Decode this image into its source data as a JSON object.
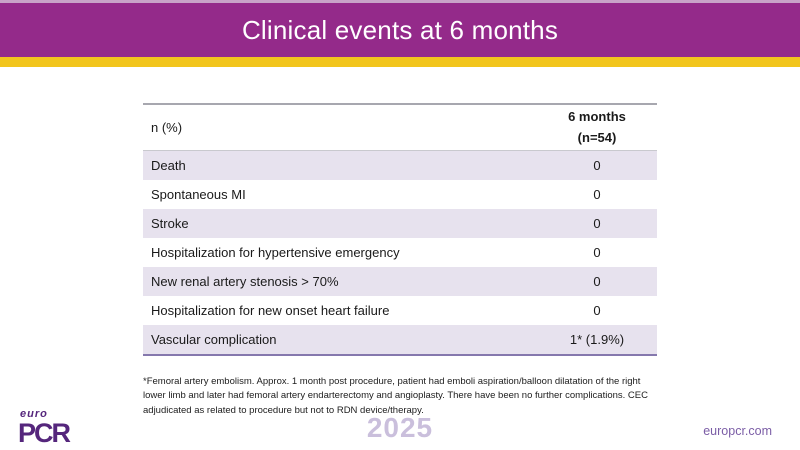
{
  "slide": {
    "title": "Clinical events at 6 months",
    "footnote": "*Femoral artery embolism. Approx. 1 month post procedure, patient had emboli aspiration/balloon dilatation of the right lower limb and later had femoral artery endarterectomy and angioplasty. There have been no further complications. CEC adjudicated as related to procedure but not to RDN device/therapy.",
    "footer": {
      "logo_euro": "euro",
      "logo_pcr": "PCR",
      "year": "2025",
      "website": "europcr.com"
    }
  },
  "table": {
    "unit_label": "n (%)",
    "column_header": {
      "line1": "6 months",
      "line2": "(n=54)"
    },
    "rows": [
      {
        "label": "Death",
        "value": "0"
      },
      {
        "label": "Spontaneous MI",
        "value": "0"
      },
      {
        "label": "Stroke",
        "value": "0"
      },
      {
        "label": "Hospitalization for hypertensive emergency",
        "value": "0"
      },
      {
        "label": "New renal artery stenosis > 70%",
        "value": "0"
      },
      {
        "label": "Hospitalization for new onset heart failure",
        "value": "0"
      },
      {
        "label": "Vascular complication",
        "value": "1* (1.9%)"
      }
    ]
  },
  "chart_data": {
    "type": "table",
    "title": "Clinical events at 6 months",
    "columns": [
      "n (%)",
      "6 months (n=54)"
    ],
    "rows": [
      [
        "Death",
        "0"
      ],
      [
        "Spontaneous MI",
        "0"
      ],
      [
        "Stroke",
        "0"
      ],
      [
        "Hospitalization for hypertensive emergency",
        "0"
      ],
      [
        "New renal artery stenosis > 70%",
        "0"
      ],
      [
        "Hospitalization for new onset heart failure",
        "0"
      ],
      [
        "Vascular complication",
        "1* (1.9%)"
      ]
    ]
  },
  "colors": {
    "header_purple": "#942a8a",
    "gold_stripe": "#f2c51d",
    "row_shade": "#e7e2ee",
    "table_top_border": "#a7a7af",
    "table_bottom_border": "#8578ad",
    "top_edge_strip": "#c8a2c8",
    "logo_purple": "#55267c",
    "year_lavender": "#cabfdc",
    "website_purple": "#7b5da6"
  }
}
